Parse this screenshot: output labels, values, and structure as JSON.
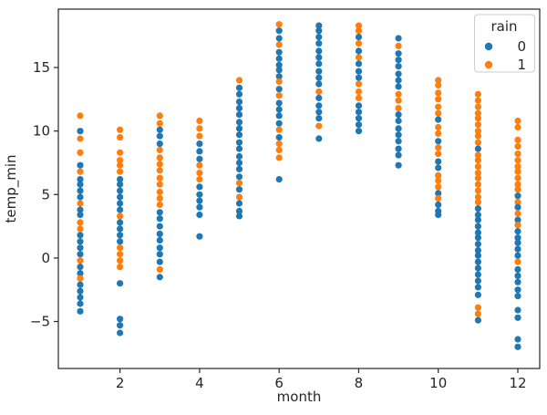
{
  "chart_data": {
    "type": "scatter",
    "subtype": "strip-plot",
    "title": "",
    "xlabel": "month",
    "ylabel": "temp_min",
    "xlim": [
      0.45,
      12.55
    ],
    "ylim": [
      -8.7,
      19.6
    ],
    "x_ticks": [
      2,
      4,
      6,
      8,
      10,
      12
    ],
    "y_ticks": [
      -5,
      0,
      5,
      10,
      15
    ],
    "grid": false,
    "marker_radius_px": 3.6,
    "spine_color": "#262626",
    "legend": {
      "title": "rain",
      "position": "upper right",
      "entries": [
        {
          "label": "0",
          "color": "#1f77b4"
        },
        {
          "label": "1",
          "color": "#ff7f0e"
        }
      ]
    },
    "hue_colors": {
      "0": "#1f77b4",
      "1": "#ff7f0e"
    },
    "series": [
      {
        "month": 1,
        "points": [
          [
            11.2,
            1
          ],
          [
            10.0,
            0
          ],
          [
            9.4,
            1
          ],
          [
            8.3,
            1
          ],
          [
            7.3,
            0
          ],
          [
            6.8,
            1
          ],
          [
            6.2,
            0
          ],
          [
            5.8,
            0
          ],
          [
            5.3,
            0
          ],
          [
            4.8,
            0
          ],
          [
            4.3,
            1
          ],
          [
            3.8,
            0
          ],
          [
            3.4,
            0
          ],
          [
            2.8,
            1
          ],
          [
            2.3,
            1
          ],
          [
            1.8,
            0
          ],
          [
            1.3,
            0
          ],
          [
            0.8,
            0
          ],
          [
            0.3,
            0
          ],
          [
            -0.2,
            1
          ],
          [
            -0.7,
            0
          ],
          [
            -1.2,
            0
          ],
          [
            -1.6,
            1
          ],
          [
            -2.1,
            0
          ],
          [
            -2.6,
            0
          ],
          [
            -3.1,
            0
          ],
          [
            -3.6,
            0
          ],
          [
            -4.2,
            0
          ]
        ]
      },
      {
        "month": 2,
        "points": [
          [
            10.1,
            1
          ],
          [
            9.5,
            1
          ],
          [
            8.3,
            1
          ],
          [
            7.7,
            1
          ],
          [
            7.3,
            1
          ],
          [
            6.8,
            1
          ],
          [
            6.2,
            0
          ],
          [
            5.8,
            0
          ],
          [
            5.3,
            0
          ],
          [
            4.8,
            0
          ],
          [
            4.3,
            0
          ],
          [
            3.8,
            0
          ],
          [
            3.3,
            1
          ],
          [
            2.8,
            0
          ],
          [
            2.3,
            0
          ],
          [
            1.8,
            0
          ],
          [
            1.3,
            0
          ],
          [
            0.8,
            1
          ],
          [
            0.3,
            1
          ],
          [
            -0.2,
            1
          ],
          [
            -0.7,
            1
          ],
          [
            -2.0,
            0
          ],
          [
            -4.8,
            0
          ],
          [
            -5.3,
            0
          ],
          [
            -5.9,
            0
          ]
        ]
      },
      {
        "month": 3,
        "points": [
          [
            11.2,
            1
          ],
          [
            10.6,
            1
          ],
          [
            10.1,
            0
          ],
          [
            9.6,
            0
          ],
          [
            9.0,
            0
          ],
          [
            8.5,
            1
          ],
          [
            7.9,
            1
          ],
          [
            7.4,
            1
          ],
          [
            6.9,
            1
          ],
          [
            6.3,
            1
          ],
          [
            5.8,
            1
          ],
          [
            5.2,
            1
          ],
          [
            4.7,
            1
          ],
          [
            4.2,
            1
          ],
          [
            3.6,
            0
          ],
          [
            3.1,
            0
          ],
          [
            2.5,
            0
          ],
          [
            1.9,
            0
          ],
          [
            1.4,
            0
          ],
          [
            0.8,
            0
          ],
          [
            0.3,
            0
          ],
          [
            -0.3,
            0
          ],
          [
            -0.9,
            1
          ],
          [
            -1.5,
            0
          ]
        ]
      },
      {
        "month": 4,
        "points": [
          [
            10.8,
            1
          ],
          [
            10.2,
            1
          ],
          [
            9.6,
            1
          ],
          [
            9.0,
            0
          ],
          [
            8.4,
            0
          ],
          [
            7.8,
            0
          ],
          [
            7.3,
            1
          ],
          [
            6.7,
            1
          ],
          [
            6.2,
            1
          ],
          [
            5.6,
            0
          ],
          [
            5.0,
            0
          ],
          [
            4.5,
            0
          ],
          [
            4.0,
            0
          ],
          [
            3.4,
            0
          ],
          [
            1.7,
            0
          ]
        ]
      },
      {
        "month": 5,
        "points": [
          [
            14.0,
            1
          ],
          [
            13.4,
            0
          ],
          [
            12.9,
            0
          ],
          [
            12.3,
            0
          ],
          [
            11.8,
            0
          ],
          [
            11.3,
            0
          ],
          [
            10.7,
            0
          ],
          [
            10.2,
            0
          ],
          [
            9.7,
            0
          ],
          [
            9.1,
            0
          ],
          [
            8.6,
            0
          ],
          [
            8.0,
            0
          ],
          [
            7.5,
            0
          ],
          [
            7.0,
            0
          ],
          [
            6.4,
            0
          ],
          [
            5.9,
            1
          ],
          [
            5.4,
            0
          ],
          [
            4.8,
            1
          ],
          [
            4.3,
            0
          ],
          [
            3.7,
            0
          ],
          [
            3.3,
            0
          ]
        ]
      },
      {
        "month": 6,
        "points": [
          [
            18.4,
            1
          ],
          [
            17.9,
            0
          ],
          [
            17.3,
            0
          ],
          [
            16.8,
            1
          ],
          [
            16.2,
            0
          ],
          [
            15.7,
            0
          ],
          [
            15.2,
            0
          ],
          [
            14.8,
            0
          ],
          [
            14.3,
            0
          ],
          [
            13.9,
            1
          ],
          [
            13.3,
            0
          ],
          [
            12.8,
            1
          ],
          [
            12.2,
            0
          ],
          [
            11.7,
            0
          ],
          [
            11.2,
            0
          ],
          [
            10.6,
            0
          ],
          [
            10.1,
            1
          ],
          [
            9.5,
            0
          ],
          [
            9.0,
            1
          ],
          [
            8.5,
            1
          ],
          [
            7.9,
            1
          ],
          [
            6.2,
            0
          ]
        ]
      },
      {
        "month": 7,
        "points": [
          [
            18.3,
            0
          ],
          [
            17.9,
            0
          ],
          [
            17.4,
            0
          ],
          [
            16.9,
            0
          ],
          [
            16.3,
            0
          ],
          [
            15.8,
            0
          ],
          [
            15.3,
            0
          ],
          [
            14.7,
            0
          ],
          [
            14.2,
            0
          ],
          [
            13.7,
            0
          ],
          [
            13.1,
            1
          ],
          [
            12.6,
            0
          ],
          [
            12.0,
            0
          ],
          [
            11.5,
            0
          ],
          [
            11.0,
            0
          ],
          [
            10.4,
            1
          ],
          [
            9.4,
            0
          ]
        ]
      },
      {
        "month": 8,
        "points": [
          [
            18.3,
            1
          ],
          [
            17.9,
            1
          ],
          [
            17.4,
            0
          ],
          [
            16.9,
            1
          ],
          [
            16.3,
            0
          ],
          [
            15.8,
            1
          ],
          [
            15.3,
            0
          ],
          [
            14.7,
            0
          ],
          [
            14.2,
            0
          ],
          [
            13.7,
            1
          ],
          [
            13.1,
            1
          ],
          [
            12.6,
            1
          ],
          [
            12.0,
            0
          ],
          [
            11.5,
            0
          ],
          [
            11.0,
            0
          ],
          [
            10.5,
            0
          ],
          [
            10.0,
            0
          ]
        ]
      },
      {
        "month": 9,
        "points": [
          [
            17.3,
            0
          ],
          [
            16.7,
            1
          ],
          [
            16.1,
            0
          ],
          [
            15.6,
            0
          ],
          [
            15.1,
            0
          ],
          [
            14.5,
            0
          ],
          [
            14.0,
            0
          ],
          [
            13.5,
            0
          ],
          [
            12.9,
            1
          ],
          [
            12.4,
            1
          ],
          [
            11.8,
            1
          ],
          [
            11.3,
            0
          ],
          [
            10.8,
            0
          ],
          [
            10.2,
            0
          ],
          [
            9.7,
            0
          ],
          [
            9.2,
            0
          ],
          [
            8.6,
            0
          ],
          [
            8.1,
            0
          ],
          [
            7.3,
            0
          ]
        ]
      },
      {
        "month": 10,
        "points": [
          [
            14.0,
            1
          ],
          [
            13.6,
            1
          ],
          [
            13.0,
            1
          ],
          [
            12.5,
            1
          ],
          [
            11.9,
            1
          ],
          [
            11.4,
            1
          ],
          [
            10.9,
            0
          ],
          [
            10.3,
            1
          ],
          [
            9.8,
            1
          ],
          [
            9.2,
            0
          ],
          [
            8.7,
            1
          ],
          [
            8.2,
            1
          ],
          [
            7.6,
            0
          ],
          [
            7.1,
            0
          ],
          [
            6.5,
            1
          ],
          [
            6.1,
            1
          ],
          [
            5.6,
            1
          ],
          [
            5.1,
            0
          ],
          [
            4.7,
            1
          ],
          [
            4.2,
            0
          ],
          [
            3.7,
            0
          ],
          [
            3.4,
            0
          ]
        ]
      },
      {
        "month": 11,
        "points": [
          [
            12.9,
            1
          ],
          [
            12.4,
            1
          ],
          [
            11.9,
            1
          ],
          [
            11.4,
            1
          ],
          [
            11.0,
            1
          ],
          [
            10.5,
            1
          ],
          [
            10.0,
            1
          ],
          [
            9.6,
            1
          ],
          [
            9.1,
            1
          ],
          [
            8.6,
            0
          ],
          [
            8.1,
            1
          ],
          [
            7.7,
            1
          ],
          [
            7.2,
            1
          ],
          [
            6.7,
            1
          ],
          [
            6.3,
            1
          ],
          [
            5.8,
            1
          ],
          [
            5.3,
            1
          ],
          [
            4.8,
            1
          ],
          [
            4.4,
            1
          ],
          [
            3.9,
            0
          ],
          [
            3.4,
            0
          ],
          [
            3.0,
            0
          ],
          [
            2.5,
            0
          ],
          [
            2.0,
            0
          ],
          [
            1.6,
            0
          ],
          [
            1.1,
            0
          ],
          [
            0.6,
            0
          ],
          [
            0.2,
            0
          ],
          [
            -0.3,
            0
          ],
          [
            -0.8,
            0
          ],
          [
            -1.3,
            0
          ],
          [
            -1.8,
            0
          ],
          [
            -2.3,
            0
          ],
          [
            -2.9,
            0
          ],
          [
            -3.9,
            1
          ],
          [
            -4.4,
            1
          ],
          [
            -4.9,
            0
          ]
        ]
      },
      {
        "month": 12,
        "points": [
          [
            10.8,
            1
          ],
          [
            10.3,
            1
          ],
          [
            9.3,
            1
          ],
          [
            8.8,
            1
          ],
          [
            8.2,
            1
          ],
          [
            7.7,
            1
          ],
          [
            7.2,
            1
          ],
          [
            6.8,
            1
          ],
          [
            6.3,
            1
          ],
          [
            5.8,
            1
          ],
          [
            5.4,
            1
          ],
          [
            4.9,
            0
          ],
          [
            4.4,
            1
          ],
          [
            4.0,
            0
          ],
          [
            3.5,
            1
          ],
          [
            3.0,
            0
          ],
          [
            2.6,
            1
          ],
          [
            2.1,
            0
          ],
          [
            1.6,
            0
          ],
          [
            1.2,
            0
          ],
          [
            0.7,
            0
          ],
          [
            0.2,
            0
          ],
          [
            -0.3,
            1
          ],
          [
            -0.9,
            0
          ],
          [
            -1.4,
            0
          ],
          [
            -1.9,
            0
          ],
          [
            -2.5,
            0
          ],
          [
            -3.0,
            0
          ],
          [
            -4.1,
            0
          ],
          [
            -4.7,
            0
          ],
          [
            -6.4,
            0
          ],
          [
            -7.0,
            0
          ]
        ]
      }
    ]
  }
}
